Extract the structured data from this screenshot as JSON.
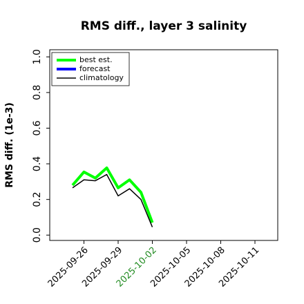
{
  "chart_data": {
    "type": "line",
    "title": "RMS diff., layer 3 salinity",
    "y_label": "RMS diff. (1e-3)",
    "x": [
      "2025-09-25",
      "2025-09-26",
      "2025-09-27",
      "2025-09-28",
      "2025-09-29",
      "2025-09-30",
      "2025-10-01",
      "2025-10-02"
    ],
    "series": [
      {
        "name": "best est.",
        "color": "#00ff00",
        "width": 4,
        "values": [
          0.28,
          0.354,
          0.32,
          0.377,
          0.265,
          0.31,
          0.24,
          0.07
        ]
      },
      {
        "name": "forecast",
        "color": "#0000ff",
        "width": 4,
        "values": [
          null,
          null,
          null,
          null,
          null,
          null,
          null,
          null
        ]
      },
      {
        "name": "climatology",
        "color": "#000000",
        "width": 1.5,
        "values": [
          0.265,
          0.31,
          0.305,
          0.34,
          0.22,
          0.26,
          0.2,
          0.045
        ]
      }
    ],
    "xlim": [
      "2025-09-23",
      "2025-10-13"
    ],
    "xticks": [
      "2025-09-26",
      "2025-09-29",
      "2025-10-02",
      "2025-10-05",
      "2025-10-08",
      "2025-10-11"
    ],
    "ylim": [
      -0.03,
      1.04
    ],
    "yticks": [
      {
        "value": 0,
        "label": "0.0"
      },
      {
        "value": 0.2,
        "label": "0.2"
      },
      {
        "value": 0.4,
        "label": "0.4"
      },
      {
        "value": 0.6,
        "label": "0.6"
      },
      {
        "value": 0.8,
        "label": "0.8"
      },
      {
        "value": 1,
        "label": "1.0"
      }
    ],
    "grid": false,
    "legend": "upper left",
    "highlight": {
      "tick": "2025-10-02",
      "color": "#228b22"
    }
  }
}
